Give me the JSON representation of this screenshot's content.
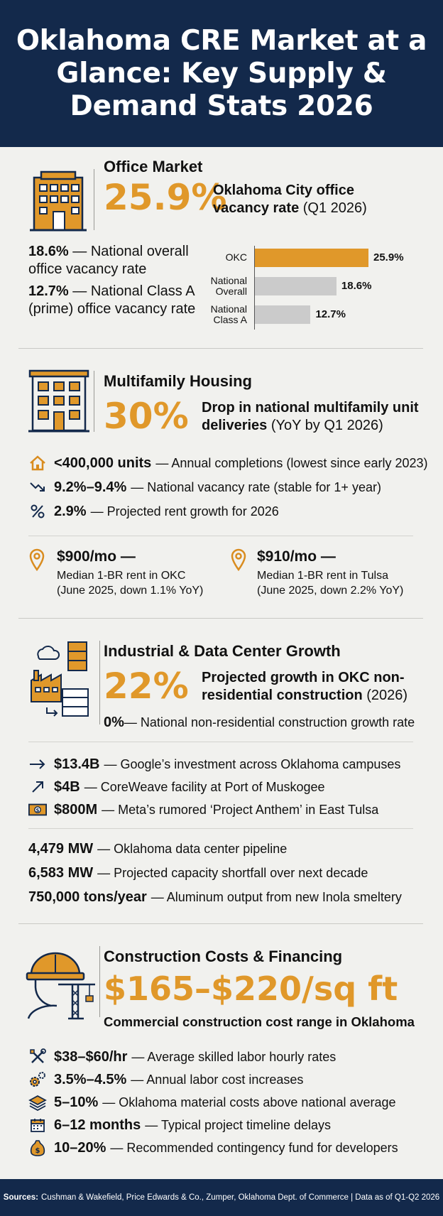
{
  "header": {
    "title": "Oklahoma CRE Market at a Glance: Key Supply & Demand Stats 2026"
  },
  "office": {
    "title": "Office Market",
    "stat": "25.9%",
    "stat_desc_bold": "Oklahoma City office",
    "stat_desc_bold2": "vacancy rate",
    "stat_desc_rest": " (Q1 2026)",
    "items": [
      {
        "value": "18.6%",
        "text": " — National overall office vacancy rate"
      },
      {
        "value": "12.7%",
        "text": " — National Class A (prime) office vacancy rate"
      }
    ],
    "chart_data": {
      "type": "bar",
      "categories": [
        "OKC",
        "National Overall",
        "National Class A"
      ],
      "values": [
        25.9,
        18.6,
        12.7
      ],
      "value_labels": [
        "25.9%",
        "18.6%",
        "12.7%"
      ],
      "colors": [
        "#e0982a",
        "#cbcbcb",
        "#cbcbcb"
      ],
      "xlim": [
        0,
        30
      ]
    }
  },
  "multifamily": {
    "title": "Multifamily Housing",
    "stat": "30%",
    "stat_desc_bold": "Drop in national multifamily unit deliveries",
    "stat_desc_rest": " (YoY by Q1 2026)",
    "rows": [
      {
        "icon": "house-icon",
        "value": "<400,000 units",
        "text": "— Annual completions (lowest since early 2023)"
      },
      {
        "icon": "trend-down-icon",
        "value": "9.2%–9.4%",
        "text": "— National vacancy rate (stable for 1+ year)"
      },
      {
        "icon": "percent-icon",
        "value": "2.9%",
        "text": "— Projected rent growth for 2026"
      }
    ],
    "rents": [
      {
        "value": "$900/mo —",
        "line1": "Median 1-BR rent in OKC",
        "line2": "(June 2025, down 1.1% YoY)"
      },
      {
        "value": "$910/mo —",
        "line1": "Median 1-BR rent in Tulsa",
        "line2": "(June 2025, down 2.2% YoY)"
      }
    ]
  },
  "industrial": {
    "title": "Industrial & Data Center Growth",
    "stat": "22%",
    "stat_desc_bold": "Projected growth in OKC non-residential construction",
    "stat_desc_rest": " (2026)",
    "national": {
      "value": "0%",
      "text": " — National non-residential construction growth rate"
    },
    "rows": [
      {
        "icon": "arrow-right-icon",
        "value": "$13.4B",
        "text": "— Google’s investment across Oklahoma campuses"
      },
      {
        "icon": "arrow-up-right-icon",
        "value": "$4B",
        "text": "— CoreWeave facility at Port of Muskogee"
      },
      {
        "icon": "money-icon",
        "value": "$800M",
        "text": "— Meta’s rumored ‘Project Anthem’ in East Tulsa"
      }
    ],
    "stats": [
      {
        "value": "4,479 MW",
        "text": "— Oklahoma data center pipeline"
      },
      {
        "value": "6,583 MW",
        "text": "— Projected capacity shortfall over next decade"
      },
      {
        "value": "750,000 tons/year",
        "text": "— Aluminum output from new Inola smeltery"
      }
    ]
  },
  "construction": {
    "title": "Construction Costs & Financing",
    "stat": "$165–$220/sq ft",
    "stat_desc": "Commercial construction cost range in Oklahoma",
    "rows": [
      {
        "icon": "tools-icon",
        "value": "$38–$60/hr",
        "text": "— Average skilled labor hourly rates"
      },
      {
        "icon": "gears-icon",
        "value": "3.5%–4.5%",
        "text": "— Annual labor cost increases"
      },
      {
        "icon": "layers-icon",
        "value": "5–10%",
        "text": "— Oklahoma material costs above national average"
      },
      {
        "icon": "calendar-icon",
        "value": "6–12 months",
        "text": "— Typical project timeline delays"
      },
      {
        "icon": "money-bag-icon",
        "value": "10–20%",
        "text": "— Recommended contingency fund for developers"
      }
    ]
  },
  "footer": {
    "label": "Sources:",
    "text": "Cushman & Wakefield, Price Edwards & Co., Zumper, Oklahoma Dept. of Commerce | Data as of Q1-Q2 2026"
  }
}
